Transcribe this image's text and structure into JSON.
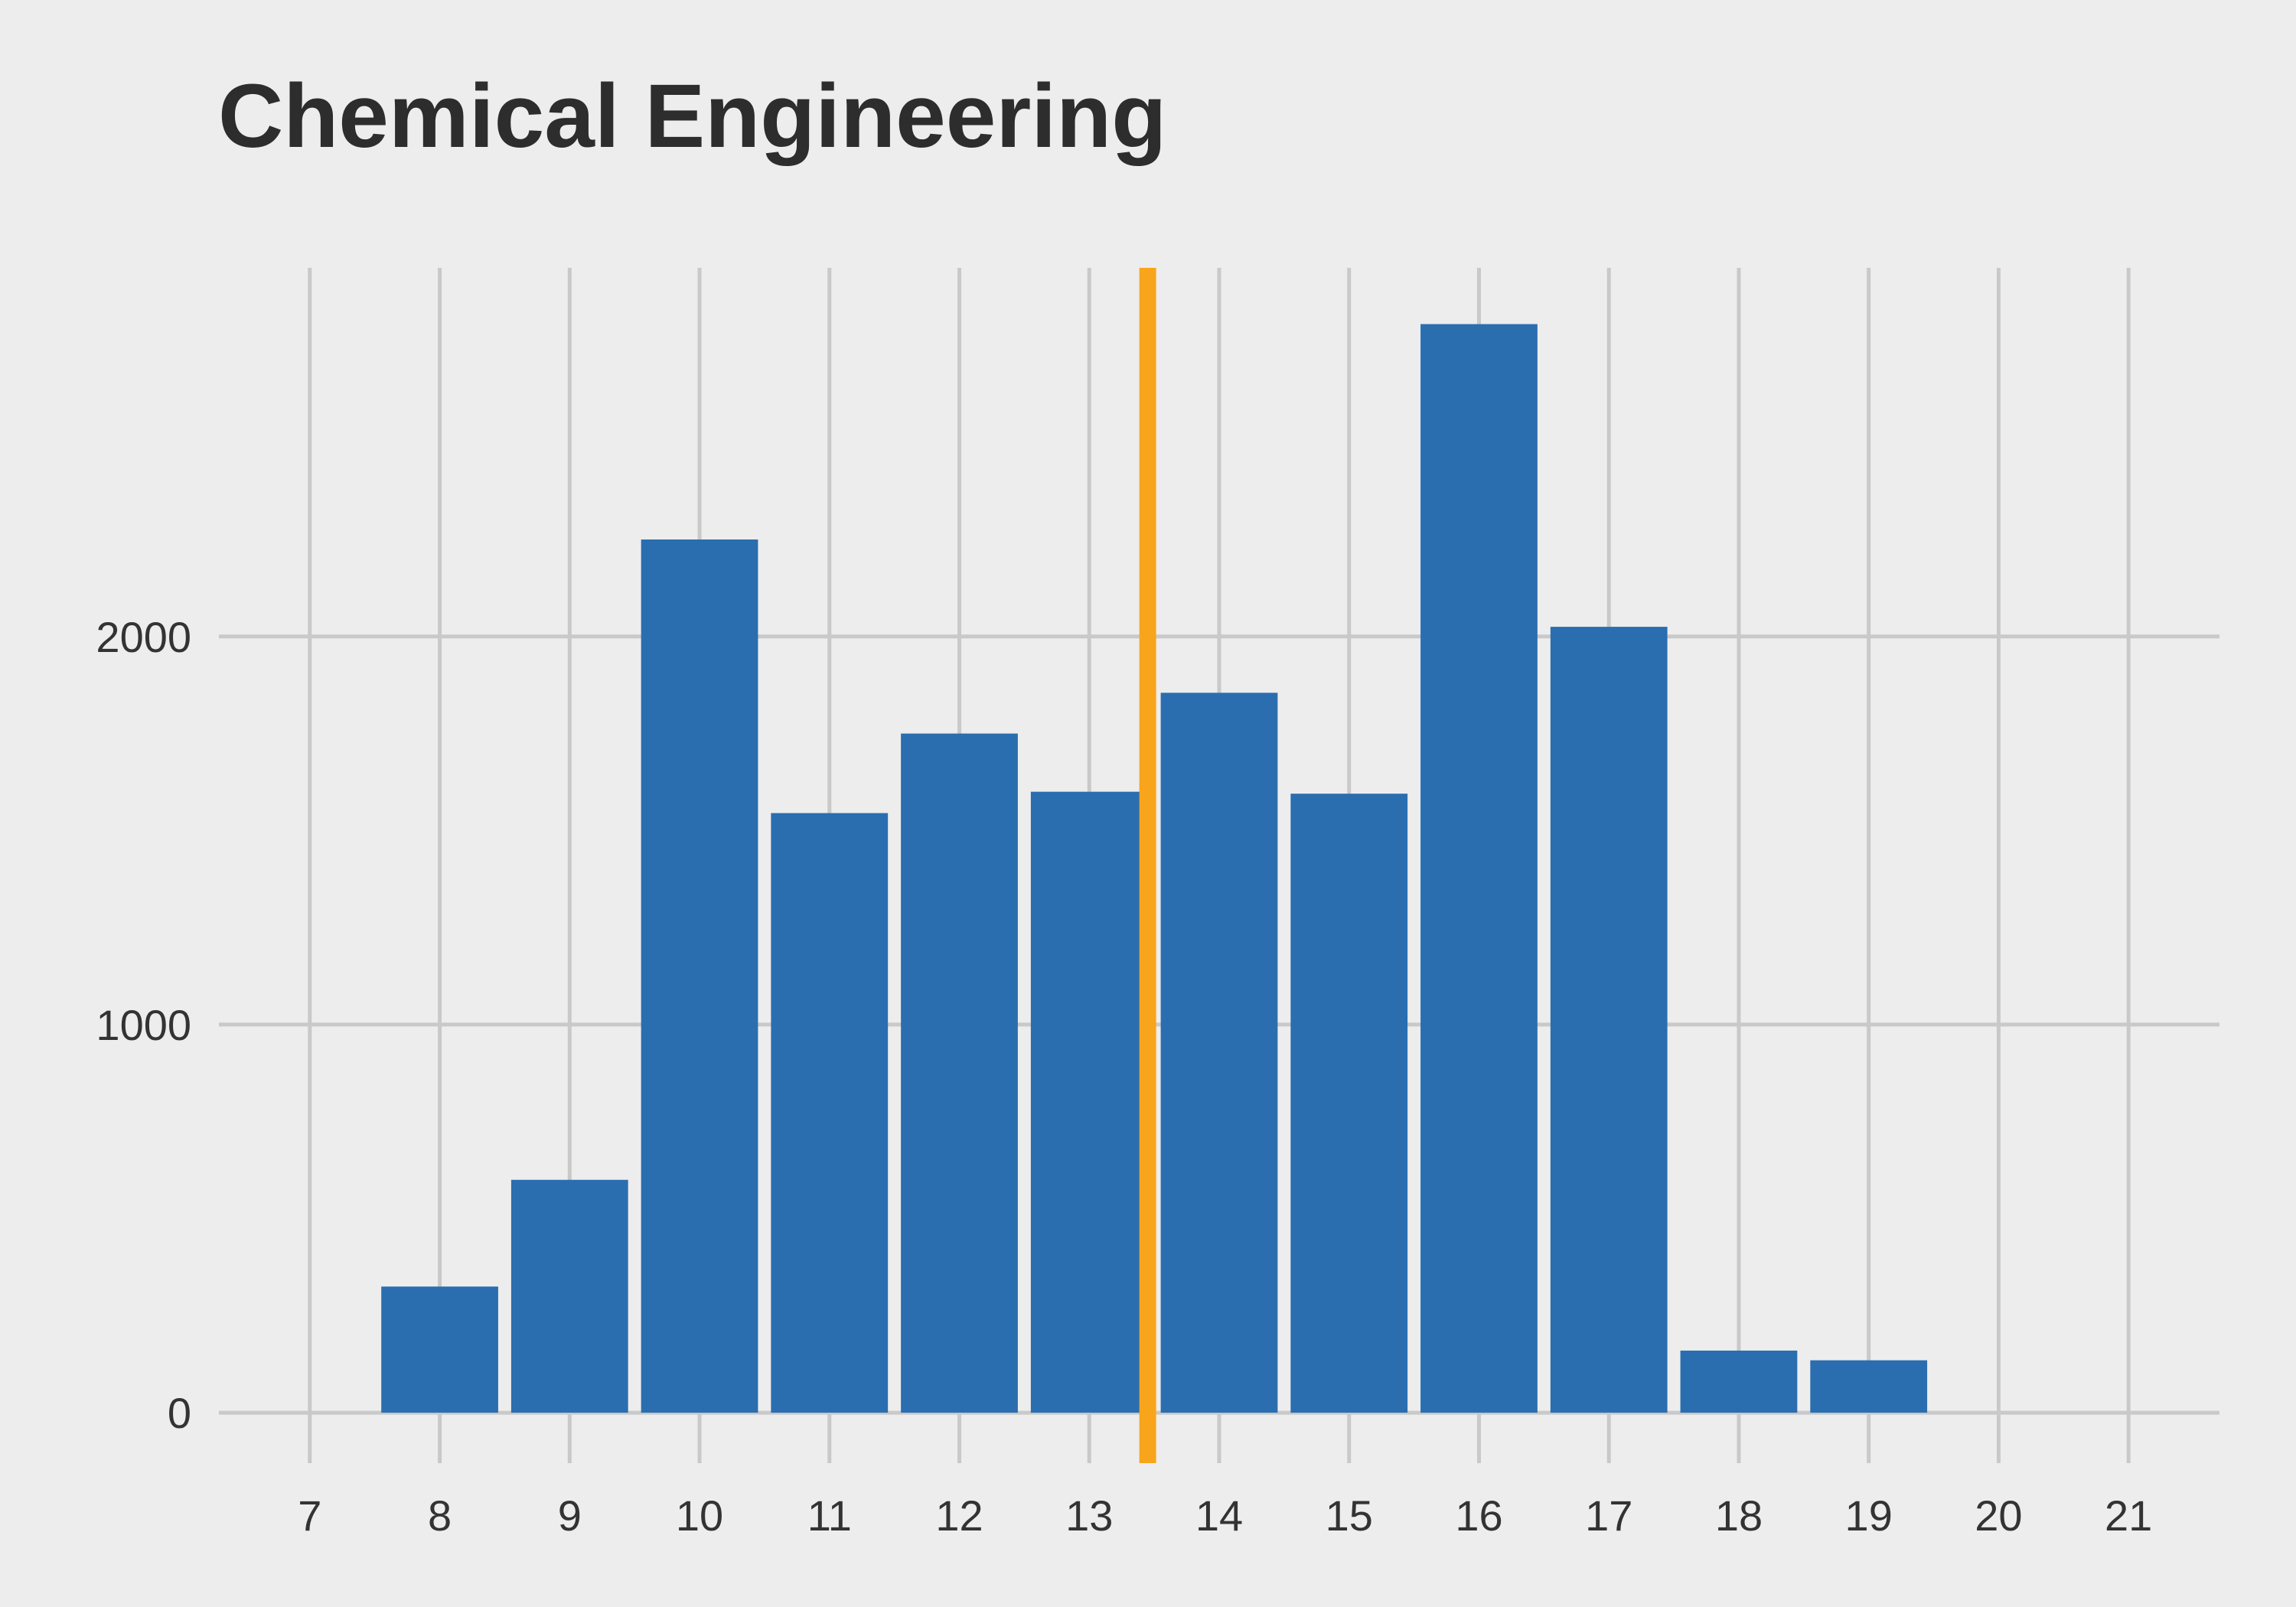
{
  "chart_data": {
    "type": "bar",
    "title": "Chemical Engineering",
    "xlabel": "",
    "ylabel": "",
    "x": [
      8,
      9,
      10,
      11,
      12,
      13,
      14,
      15,
      16,
      17,
      18,
      19
    ],
    "values": [
      325,
      600,
      2250,
      1545,
      1750,
      1600,
      1855,
      1595,
      2805,
      2025,
      160,
      135
    ],
    "x_ticks": [
      "7",
      "8",
      "9",
      "10",
      "11",
      "12",
      "13",
      "14",
      "15",
      "16",
      "17",
      "18",
      "19",
      "20",
      "21"
    ],
    "y_ticks": [
      "0",
      "1000",
      "2000"
    ],
    "xlim": [
      6.3,
      21.7
    ],
    "ylim": [
      -130,
      2950
    ],
    "reference_line": {
      "x": 13.45
    },
    "grid": true,
    "legend": "none",
    "colors": {
      "bar": "#2a6eb0",
      "reference_line": "#f9a51b",
      "grid": "#c9c9c9",
      "background": "#ededed"
    }
  }
}
